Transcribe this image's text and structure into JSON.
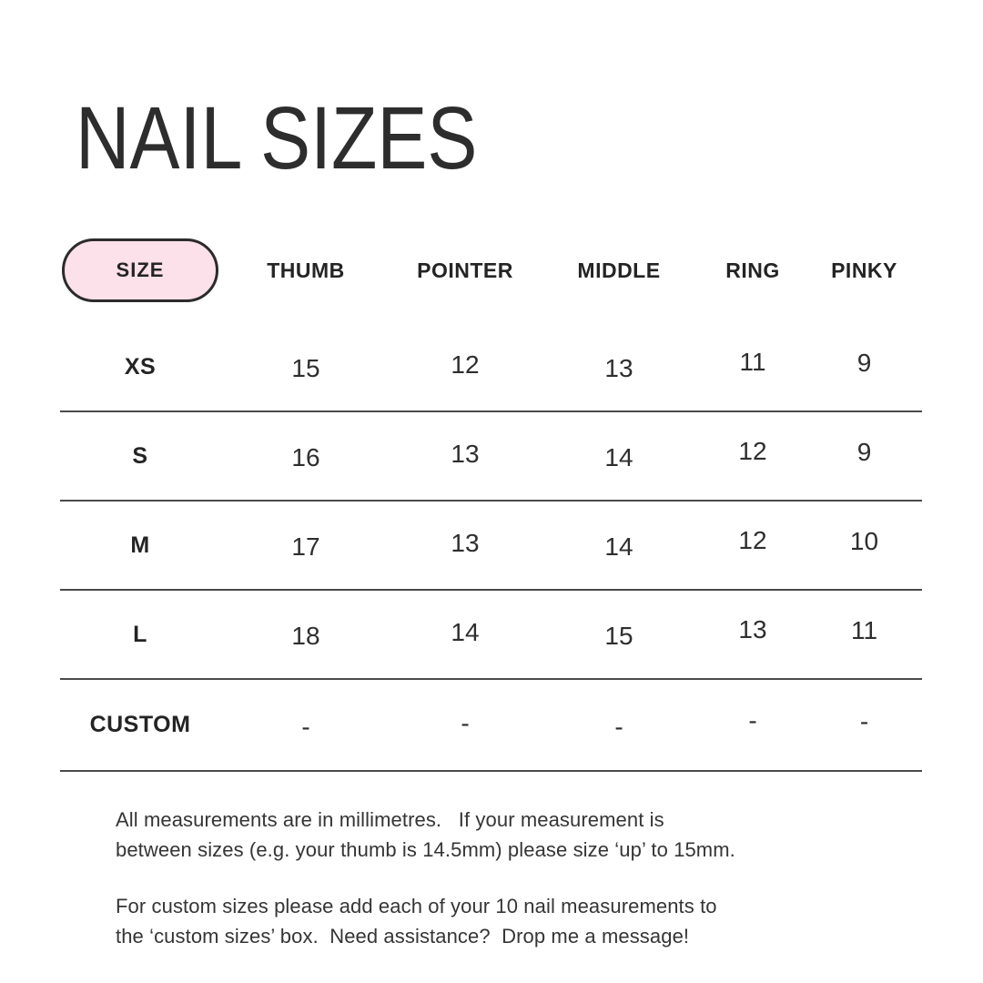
{
  "title": "NAIL SIZES",
  "colors": {
    "pill-bg": "#fce0ea",
    "pill-border": "#2b2b2b",
    "line": "#4a4a4a",
    "ink": "#2d2d2d"
  },
  "chart_data": {
    "type": "table",
    "title": "NAIL SIZES",
    "unit": "millimetres",
    "columns": [
      "SIZE",
      "THUMB",
      "POINTER",
      "MIDDLE",
      "RING",
      "PINKY"
    ],
    "rows": [
      {
        "label": "XS",
        "values": [
          "15",
          "12",
          "13",
          "11",
          "9"
        ]
      },
      {
        "label": "S",
        "values": [
          "16",
          "13",
          "14",
          "12",
          "9"
        ]
      },
      {
        "label": "M",
        "values": [
          "17",
          "13",
          "14",
          "12",
          "10"
        ]
      },
      {
        "label": "L",
        "values": [
          "18",
          "14",
          "15",
          "13",
          "11"
        ]
      },
      {
        "label": "CUSTOM",
        "values": [
          "-",
          "-",
          "-",
          "-",
          "-"
        ]
      }
    ]
  },
  "footer": {
    "note1": "All measurements are in millimetres.   If your measurement is\nbetween sizes (e.g. your thumb is 14.5mm) please size ‘up’ to 15mm.",
    "note2": "For custom sizes please add each of your 10 nail measurements to\nthe ‘custom sizes’ box.  Need assistance?  Drop me a message!"
  }
}
